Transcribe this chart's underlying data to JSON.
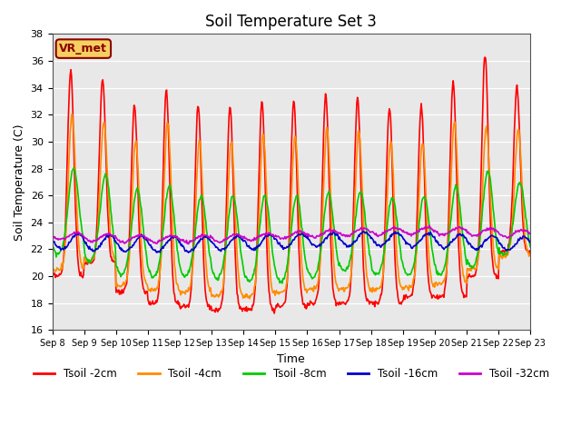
{
  "title": "Soil Temperature Set 3",
  "xlabel": "Time",
  "ylabel": "Soil Temperature (C)",
  "ylim": [
    16,
    38
  ],
  "yticks": [
    16,
    18,
    20,
    22,
    24,
    26,
    28,
    30,
    32,
    34,
    36,
    38
  ],
  "xtick_labels": [
    "Sep 8",
    "Sep 9",
    "Sep 10",
    "Sep 11",
    "Sep 12",
    "Sep 13",
    "Sep 14",
    "Sep 15",
    "Sep 16",
    "Sep 17",
    "Sep 18",
    "Sep 19",
    "Sep 20",
    "Sep 21",
    "Sep 22",
    "Sep 23"
  ],
  "bg_color": "#e8e8e8",
  "fig_color": "#ffffff",
  "legend_label": "VR_met",
  "series": {
    "Tsoil -2cm": {
      "color": "#ff0000",
      "lw": 1.2
    },
    "Tsoil -4cm": {
      "color": "#ff8c00",
      "lw": 1.2
    },
    "Tsoil -8cm": {
      "color": "#00cc00",
      "lw": 1.2
    },
    "Tsoil -16cm": {
      "color": "#0000cc",
      "lw": 1.2
    },
    "Tsoil -32cm": {
      "color": "#cc00cc",
      "lw": 1.2
    }
  },
  "n_days": 15,
  "n_per_day": 48
}
